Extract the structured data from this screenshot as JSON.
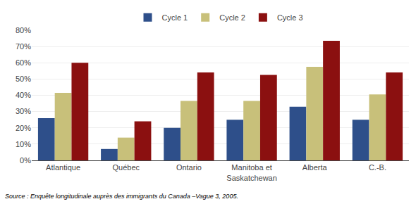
{
  "chart_data": {
    "type": "bar",
    "categories": [
      "Atlantique",
      "Québec",
      "Ontario",
      "Manitoba et\nSaskatchewan",
      "Alberta",
      "C.-B."
    ],
    "series": [
      {
        "name": "Cycle 1",
        "color": "#2E4F8A",
        "values": [
          0.26,
          0.07,
          0.2,
          0.25,
          0.33,
          0.25
        ]
      },
      {
        "name": "Cycle 2",
        "color": "#C8C07A",
        "values": [
          0.415,
          0.14,
          0.365,
          0.365,
          0.575,
          0.405
        ]
      },
      {
        "name": "Cycle 3",
        "color": "#8B1010",
        "values": [
          0.6,
          0.24,
          0.54,
          0.525,
          0.735,
          0.54
        ]
      }
    ],
    "ylim": [
      0,
      0.8
    ],
    "yticks": [
      {
        "value": 0,
        "label": "0%"
      },
      {
        "value": 0.1,
        "label": "10%"
      },
      {
        "value": 0.2,
        "label": "20%"
      },
      {
        "value": 0.3,
        "label": "30%"
      },
      {
        "value": 0.4,
        "label": "40%"
      },
      {
        "value": 0.5,
        "label": "50%"
      },
      {
        "value": 0.6,
        "label": "60%"
      },
      {
        "value": 0.7,
        "label": "70%"
      },
      {
        "value": 0.8,
        "label": "80%"
      }
    ],
    "annotations": [
      "Source : Enquête longitudinale auprès des immigrants du Canada –Vague 3, 2005."
    ],
    "grid": true,
    "legend": "top"
  }
}
